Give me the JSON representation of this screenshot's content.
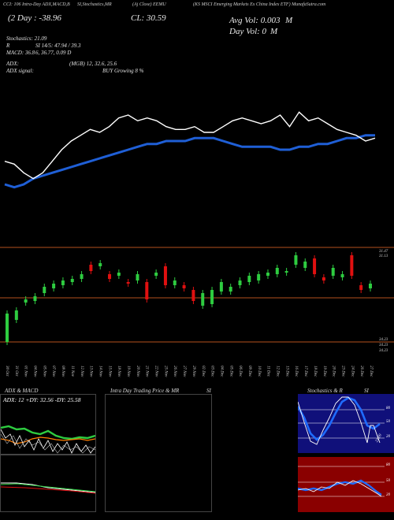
{
  "header": {
    "items": [
      "CCI: 106 Intra-Day ADX,MACD,B",
      "SI,Stochastics,MR",
      "(Aj Close) EEMU",
      "(KS MSCI Emerging Markets Ex China Index ETF) MunafaSutra.com"
    ],
    "day_change": "(2 Day : -38.96",
    "close": "CL: 30.59",
    "avg_vol": "Avg Vol: 0.003",
    "avg_vol_unit": "M",
    "day_vol": "Day Vol: 0",
    "day_vol_unit": "M"
  },
  "indicators": {
    "stochastics": "Stochastics: 21.09",
    "r_label": "R",
    "si": "SI 14/5: 47.94 / 39.3",
    "macd_left": "MACD: 36.8",
    "macd_right": "6, 36.77, 0.09 D",
    "adx": "ADX:",
    "adx_vals": "(MGB) 12, 32.6, 25.6",
    "adx_signal": "ADX signal:",
    "adx_signal_val": "BUY Growing 8 %"
  },
  "price_axis": {
    "top_a": "31.47",
    "top_b": "31.13",
    "bottom_a": "34.23",
    "bottom_b": "34.23",
    "bottom_c": "34.23"
  },
  "dates": [
    "30 Oct",
    "31 Oct",
    "01 Nov",
    "04 Nov",
    "05 Nov",
    "07 Nov",
    "08 Nov",
    "11 Nov",
    "12 Nov",
    "13 Nov",
    "14 Nov",
    "15 Nov",
    "18 Nov",
    "19 Nov",
    "20 Nov",
    "21 Nov",
    "22 Nov",
    "25 Nov",
    "26 Nov",
    "27 Nov",
    "29 Nov",
    "02 Dec",
    "03 Dec",
    "04 Dec",
    "05 Dec",
    "06 Dec",
    "09 Dec",
    "10 Dec",
    "11 Dec",
    "12 Dec",
    "13 Dec",
    "16 Dec",
    "17 Dec",
    "18 Dec",
    "19 Dec",
    "20 Dec",
    "23 Dec",
    "24 Dec",
    "26 Dec",
    "27 Dec"
  ],
  "panels": {
    "adx_title": "ADX & MACD",
    "adx_values": "ADX: 12  +DY: 32.56  -DY: 25.58",
    "intraday_title": "Intra Day Trading Price & MR",
    "intraday_si": "SI",
    "stoch_title": "Stochastics & R",
    "stoch_si": "SI",
    "stoch_axis": [
      "80",
      "50",
      "20"
    ],
    "stoch_value": "21.09",
    "rsi_axis": [
      "80",
      "50",
      "20"
    ]
  },
  "colors": {
    "background": "#000000",
    "ema_line": "#1f5fd6",
    "price_line": "#ffffff",
    "candle_up": "#2ecc40",
    "candle_down": "#e01010",
    "grid_orange": "#b4501e",
    "plusdi": "#2ecc40",
    "minusdi": "#ff7f00",
    "stoch_bg": "#10107a",
    "rsi_bg": "#8a0000"
  },
  "chart_data": {
    "type": "line",
    "series": [
      {
        "values": [
          46,
          45,
          42,
          40,
          42,
          46,
          50,
          53,
          55,
          57,
          56,
          58,
          61,
          62,
          60,
          61,
          60,
          58,
          57,
          57,
          58,
          56,
          56,
          58,
          60,
          61,
          60,
          59,
          60,
          62,
          58,
          63,
          60,
          61,
          59,
          57,
          56,
          55,
          53,
          54
        ]
      },
      {
        "values": [
          38,
          37,
          38,
          40,
          41,
          42,
          43,
          44,
          45,
          46,
          47,
          48,
          49,
          50,
          51,
          52,
          52,
          53,
          53,
          53,
          54,
          54,
          54,
          53,
          52,
          51,
          51,
          51,
          51,
          50,
          50,
          51,
          51,
          52,
          52,
          53,
          54,
          54,
          55,
          55
        ]
      }
    ]
  }
}
